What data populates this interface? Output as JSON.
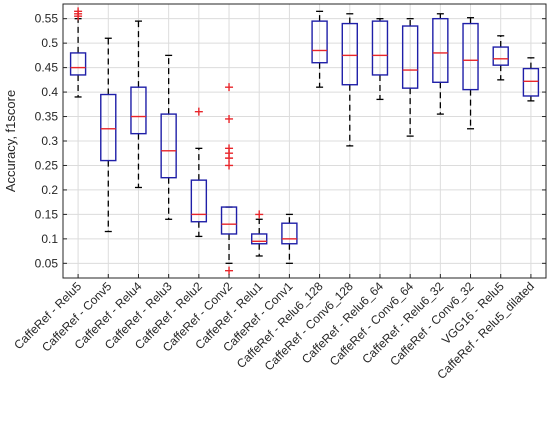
{
  "chart_data": {
    "type": "box",
    "title": "",
    "xlabel": "",
    "ylabel": "Accuracy, f1score",
    "ylim": [
      0.02,
      0.58
    ],
    "yticks": [
      0.05,
      0.1,
      0.15,
      0.2,
      0.25,
      0.3,
      0.35,
      0.4,
      0.45,
      0.5,
      0.55
    ],
    "grid": true,
    "colors": {
      "box": "#1f1fa8",
      "median": "#e8262b",
      "whisker": "#000000",
      "outlier": "#e8262b",
      "grid": "#dcdcdc"
    },
    "categories": [
      "CaffeRef - Relu5",
      "CaffeRef - Conv5",
      "CaffeRef - Relu4",
      "CaffeRef - Relu3",
      "CaffeRef - Relu2",
      "CaffeRef - Conv2",
      "CaffeRef - Relu1",
      "CaffeRef - Conv1",
      "CaffeRef - Relu6_128",
      "CaffeRef - Conv6_128",
      "CaffeRef - Relu6_64",
      "CaffeRef - Conv6_64",
      "CaffeRef - Relu6_32",
      "CaffeRef - Conv6_32",
      "VGG16 - Relu5",
      "CaffeRef - Relu5_dilated"
    ],
    "boxes": [
      {
        "whislo": 0.39,
        "q1": 0.435,
        "med": 0.45,
        "q3": 0.48,
        "whishi": 0.55,
        "fliers": [
          0.555,
          0.56,
          0.565
        ]
      },
      {
        "whislo": 0.115,
        "q1": 0.26,
        "med": 0.325,
        "q3": 0.395,
        "whishi": 0.51,
        "fliers": []
      },
      {
        "whislo": 0.205,
        "q1": 0.315,
        "med": 0.35,
        "q3": 0.41,
        "whishi": 0.545,
        "fliers": []
      },
      {
        "whislo": 0.14,
        "q1": 0.225,
        "med": 0.28,
        "q3": 0.355,
        "whishi": 0.475,
        "fliers": []
      },
      {
        "whislo": 0.105,
        "q1": 0.135,
        "med": 0.15,
        "q3": 0.22,
        "whishi": 0.285,
        "fliers": [
          0.36
        ]
      },
      {
        "whislo": 0.05,
        "q1": 0.11,
        "med": 0.13,
        "q3": 0.165,
        "whishi": 0.165,
        "fliers": [
          0.41,
          0.345,
          0.285,
          0.275,
          0.265,
          0.25,
          0.035
        ]
      },
      {
        "whislo": 0.065,
        "q1": 0.09,
        "med": 0.095,
        "q3": 0.11,
        "whishi": 0.14,
        "fliers": [
          0.15
        ]
      },
      {
        "whislo": 0.05,
        "q1": 0.09,
        "med": 0.1,
        "q3": 0.132,
        "whishi": 0.15,
        "fliers": []
      },
      {
        "whislo": 0.41,
        "q1": 0.46,
        "med": 0.485,
        "q3": 0.545,
        "whishi": 0.565,
        "fliers": []
      },
      {
        "whislo": 0.29,
        "q1": 0.415,
        "med": 0.475,
        "q3": 0.54,
        "whishi": 0.56,
        "fliers": []
      },
      {
        "whislo": 0.385,
        "q1": 0.435,
        "med": 0.475,
        "q3": 0.545,
        "whishi": 0.55,
        "fliers": []
      },
      {
        "whislo": 0.31,
        "q1": 0.408,
        "med": 0.445,
        "q3": 0.535,
        "whishi": 0.55,
        "fliers": []
      },
      {
        "whislo": 0.355,
        "q1": 0.42,
        "med": 0.48,
        "q3": 0.55,
        "whishi": 0.56,
        "fliers": []
      },
      {
        "whislo": 0.325,
        "q1": 0.405,
        "med": 0.465,
        "q3": 0.54,
        "whishi": 0.552,
        "fliers": []
      },
      {
        "whislo": 0.425,
        "q1": 0.455,
        "med": 0.468,
        "q3": 0.492,
        "whishi": 0.515,
        "fliers": []
      },
      {
        "whislo": 0.382,
        "q1": 0.392,
        "med": 0.422,
        "q3": 0.448,
        "whishi": 0.47,
        "fliers": []
      }
    ]
  }
}
